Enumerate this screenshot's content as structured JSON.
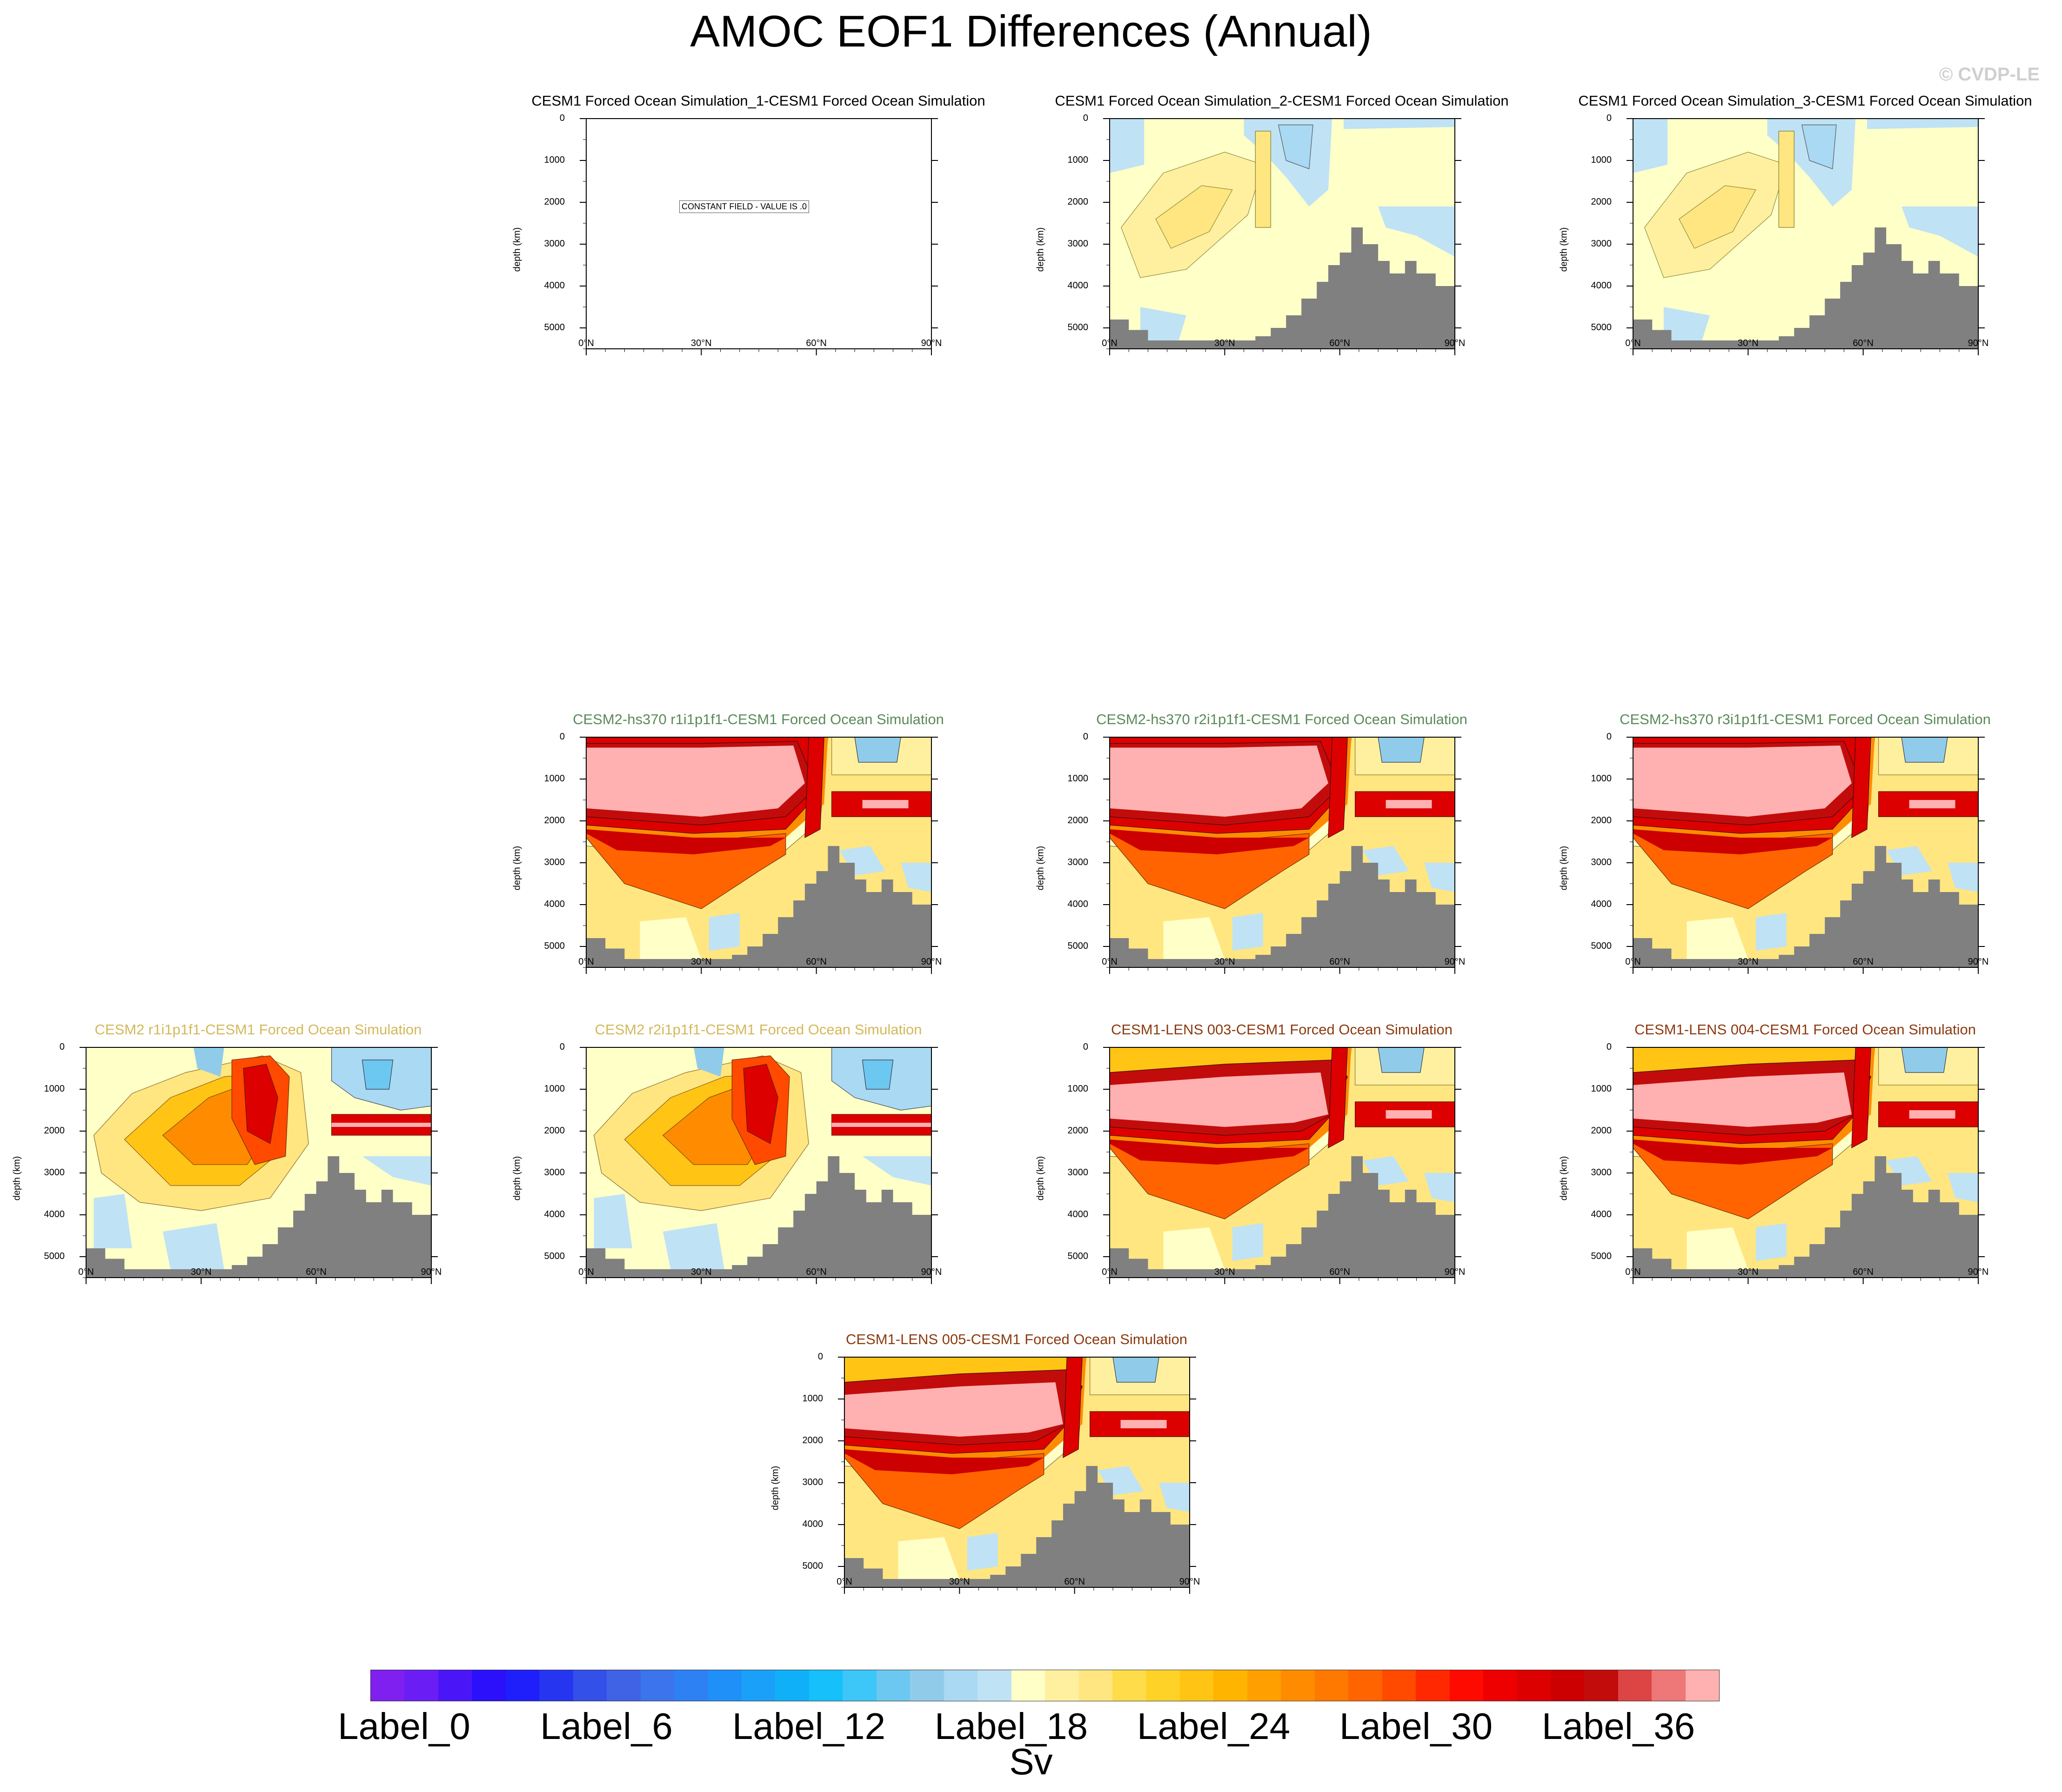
{
  "title": "AMOC EOF1 Differences (Annual)",
  "credit": "© CVDP-LE",
  "chart_data": {
    "type": "heatmap",
    "ylabel": "depth (km)",
    "yticks": [
      "0",
      "1000",
      "2000",
      "3000",
      "4000",
      "5000"
    ],
    "xticks": [
      "0°N",
      "30°N",
      "60°N",
      "90°N"
    ],
    "ylim": [
      0,
      5500
    ],
    "xlim": [
      0,
      90
    ],
    "units": "Sv",
    "colorbar": {
      "labels": [
        "Label_0",
        "Label_6",
        "Label_12",
        "Label_18",
        "Label_24",
        "Label_30",
        "Label_36"
      ],
      "colors": [
        "#7f20f0",
        "#6a1ef5",
        "#4b16f7",
        "#2c10fb",
        "#1f1ffb",
        "#2635f0",
        "#3350e8",
        "#3f63e4",
        "#3b74ec",
        "#2e81f2",
        "#1f90f7",
        "#1aa0f8",
        "#10b0f9",
        "#15c0fb",
        "#3dc6f8",
        "#6cc8f0",
        "#90ccea",
        "#a9d9f3",
        "#bfe2f5",
        "#ffffc8",
        "#fff0a0",
        "#ffe680",
        "#ffdc4a",
        "#ffd228",
        "#ffc414",
        "#ffb400",
        "#ffa000",
        "#ff8c00",
        "#ff7800",
        "#ff6400",
        "#ff4a00",
        "#ff2800",
        "#ff0a00",
        "#ee0000",
        "#dd0000",
        "#cc0000",
        "#c20c0c",
        "#dd4444",
        "#ee7777",
        "#ffb0b0"
      ]
    },
    "panels": [
      {
        "id": "p1",
        "title": "CESM1 Forced Ocean Simulation_1-CESM1 Forced Ocean Simulation",
        "title_color": "#000000",
        "kind": "constant",
        "note": "CONSTANT FIELD - VALUE IS .0"
      },
      {
        "id": "p2",
        "title": "CESM1 Forced Ocean Simulation_2-CESM1 Forced Ocean Simulation",
        "title_color": "#000000",
        "kind": "weak"
      },
      {
        "id": "p3",
        "title": "CESM1 Forced Ocean Simulation_3-CESM1 Forced Ocean Simulation",
        "title_color": "#000000",
        "kind": "weak"
      },
      {
        "id": "p4",
        "title": "CESM2-hs370 r1i1p1f1-CESM1 Forced Ocean Simulation",
        "title_color": "#5a8a5a",
        "kind": "strong"
      },
      {
        "id": "p5",
        "title": "CESM2-hs370 r2i1p1f1-CESM1 Forced Ocean Simulation",
        "title_color": "#5a8a5a",
        "kind": "strong"
      },
      {
        "id": "p6",
        "title": "CESM2-hs370 r3i1p1f1-CESM1 Forced Ocean Simulation",
        "title_color": "#5a8a5a",
        "kind": "strong"
      },
      {
        "id": "p7",
        "title": "CESM2 r1i1p1f1-CESM1 Forced Ocean Simulation",
        "title_color": "#d4b85a",
        "kind": "medium"
      },
      {
        "id": "p8",
        "title": "CESM2 r2i1p1f1-CESM1 Forced Ocean Simulation",
        "title_color": "#d4b85a",
        "kind": "medium"
      },
      {
        "id": "p9",
        "title": "CESM1-LENS 003-CESM1 Forced Ocean Simulation",
        "title_color": "#8b3a10",
        "kind": "lens"
      },
      {
        "id": "p10",
        "title": "CESM1-LENS 004-CESM1 Forced Ocean Simulation",
        "title_color": "#8b3a10",
        "kind": "lens"
      },
      {
        "id": "p11",
        "title": "CESM1-LENS 005-CESM1 Forced Ocean Simulation",
        "title_color": "#8b3a10",
        "kind": "lens"
      }
    ]
  }
}
